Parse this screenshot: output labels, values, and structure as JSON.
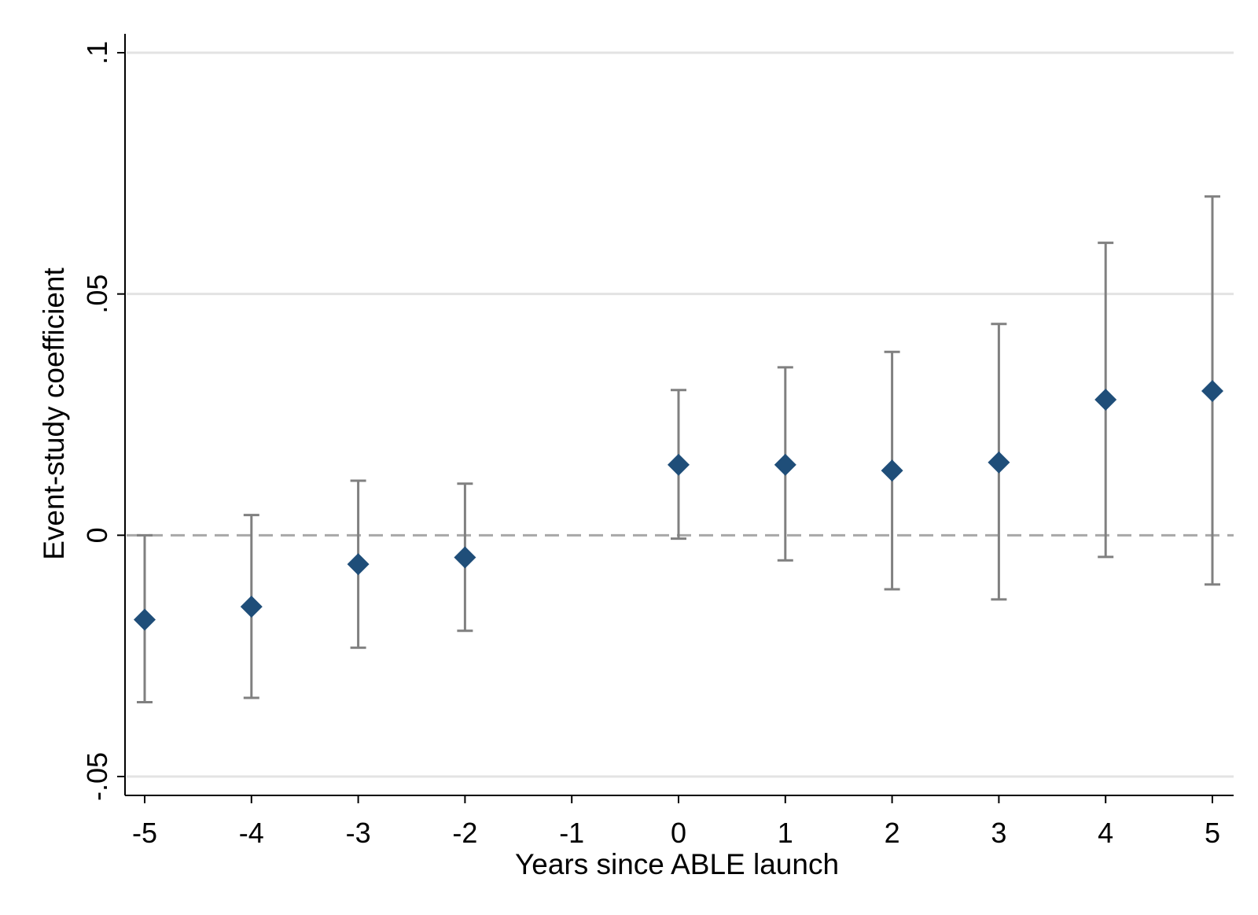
{
  "chart_data": {
    "type": "scatter",
    "subtype": "event-study coefficient plot with confidence intervals",
    "title": "",
    "xlabel": "Years since ABLE launch",
    "ylabel": "Event-study coefficient",
    "xlim": [
      -5,
      5
    ],
    "ylim": [
      -0.05,
      0.1
    ],
    "x_ticks": [
      {
        "value": -5,
        "label": "-5"
      },
      {
        "value": -4,
        "label": "-4"
      },
      {
        "value": -3,
        "label": "-3"
      },
      {
        "value": -2,
        "label": "-2"
      },
      {
        "value": -1,
        "label": "-1"
      },
      {
        "value": 0,
        "label": "0"
      },
      {
        "value": 1,
        "label": "1"
      },
      {
        "value": 2,
        "label": "2"
      },
      {
        "value": 3,
        "label": "3"
      },
      {
        "value": 4,
        "label": "4"
      },
      {
        "value": 5,
        "label": "5"
      }
    ],
    "y_ticks": [
      {
        "value": -0.05,
        "label": "-.05"
      },
      {
        "value": 0,
        "label": "0"
      },
      {
        "value": 0.05,
        "label": ".05"
      },
      {
        "value": 0.1,
        "label": ".1"
      }
    ],
    "grid": "horizontal",
    "reference_line": {
      "y": 0,
      "style": "dashed"
    },
    "points": [
      {
        "x": -5,
        "y": -0.0175,
        "ci_low": -0.0346,
        "ci_high": 0.0
      },
      {
        "x": -4,
        "y": -0.0148,
        "ci_low": -0.0337,
        "ci_high": 0.0042
      },
      {
        "x": -3,
        "y": -0.006,
        "ci_low": -0.0233,
        "ci_high": 0.0113
      },
      {
        "x": -2,
        "y": -0.0046,
        "ci_low": -0.0198,
        "ci_high": 0.0107
      },
      {
        "x": 0,
        "y": 0.0146,
        "ci_low": -0.0007,
        "ci_high": 0.0301
      },
      {
        "x": 1,
        "y": 0.0146,
        "ci_low": -0.0052,
        "ci_high": 0.0348
      },
      {
        "x": 2,
        "y": 0.0134,
        "ci_low": -0.0112,
        "ci_high": 0.038
      },
      {
        "x": 3,
        "y": 0.0151,
        "ci_low": -0.0133,
        "ci_high": 0.0438
      },
      {
        "x": 4,
        "y": 0.0281,
        "ci_low": -0.0045,
        "ci_high": 0.0606
      },
      {
        "x": 5,
        "y": 0.0299,
        "ci_low": -0.0102,
        "ci_high": 0.0702
      }
    ],
    "colors": {
      "marker": "#1f4e79",
      "ci_bar": "#808080",
      "grid": "#e3e3e3",
      "zero_line": "#a8a8a8",
      "axis": "#000000"
    }
  }
}
